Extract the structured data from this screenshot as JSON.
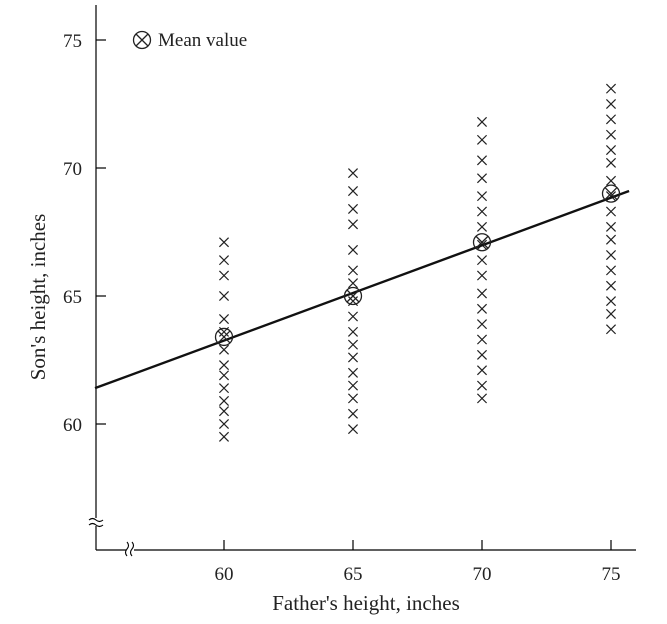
{
  "chart_data": {
    "type": "scatter",
    "title": "",
    "xlabel": "Father's height, inches",
    "ylabel": "Son's height, inches",
    "xlim": [
      55,
      76
    ],
    "ylim": [
      55,
      76
    ],
    "x_ticks": [
      60,
      65,
      70,
      75
    ],
    "y_ticks": [
      60,
      65,
      70,
      75
    ],
    "axis_breaks": true,
    "grid": false,
    "legend": {
      "label": "Mean value",
      "marker": "circled-x",
      "position": "top-left"
    },
    "observations": [
      {
        "x": 60,
        "y": [
          67.1,
          66.4,
          65.8,
          65.0,
          64.1,
          63.6,
          62.9,
          62.3,
          61.9,
          61.4,
          60.9,
          60.5,
          60.0,
          59.5
        ]
      },
      {
        "x": 65,
        "y": [
          69.8,
          69.1,
          68.4,
          67.8,
          66.8,
          66.0,
          65.5,
          64.8,
          64.2,
          63.6,
          63.1,
          62.6,
          62.0,
          61.5,
          61.0,
          60.4,
          59.8
        ]
      },
      {
        "x": 70,
        "y": [
          71.8,
          71.1,
          70.3,
          69.6,
          68.9,
          68.3,
          67.7,
          67.0,
          66.4,
          65.8,
          65.1,
          64.5,
          63.9,
          63.3,
          62.7,
          62.1,
          61.5,
          61.0
        ]
      },
      {
        "x": 75,
        "y": [
          73.1,
          72.5,
          71.9,
          71.3,
          70.7,
          70.2,
          69.5,
          68.9,
          68.3,
          67.7,
          67.2,
          66.6,
          66.0,
          65.4,
          64.8,
          64.3,
          63.7
        ]
      }
    ],
    "means": [
      {
        "x": 60,
        "y": 63.4
      },
      {
        "x": 65,
        "y": 65.0
      },
      {
        "x": 70,
        "y": 67.1
      },
      {
        "x": 75,
        "y": 69.0
      }
    ],
    "regression_line": {
      "x": [
        55,
        75.7
      ],
      "y": [
        61.4,
        69.1
      ]
    },
    "colors": {
      "ink": "#222222",
      "background": "#ffffff"
    }
  }
}
